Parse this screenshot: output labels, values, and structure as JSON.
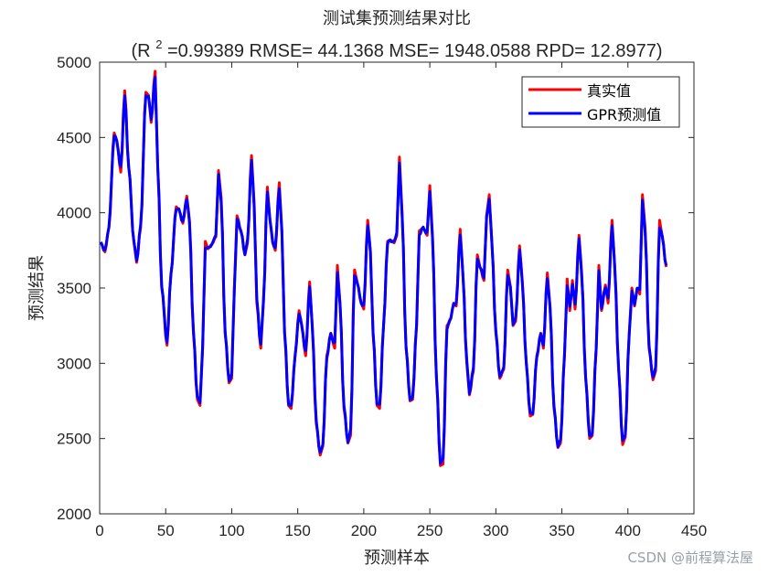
{
  "chart_data": {
    "type": "line",
    "title_line1": "测试集预测结果对比",
    "title_line2": {
      "prefix": "(R",
      "sup": "2",
      "rest": " =0.99389 RMSE= 44.1368 MSE= 1948.0588 RPD= 12.8977)"
    },
    "xlabel": "预测样本",
    "ylabel": "预测结果",
    "xlim": [
      0,
      450
    ],
    "ylim": [
      2000,
      5000
    ],
    "xticks": [
      0,
      50,
      100,
      150,
      200,
      250,
      300,
      350,
      400,
      450
    ],
    "yticks": [
      2000,
      2500,
      3000,
      3500,
      4000,
      4500,
      5000
    ],
    "legend_position": "top-right",
    "series": [
      {
        "name": "真实值",
        "color": "#ff0000"
      },
      {
        "name": "GPR预测值",
        "color": "#0000ff"
      }
    ],
    "keypoints": [
      [
        1,
        3800
      ],
      [
        4,
        3740
      ],
      [
        7,
        3900
      ],
      [
        11,
        4530
      ],
      [
        13,
        4480
      ],
      [
        16,
        4270
      ],
      [
        19,
        4810
      ],
      [
        22,
        4300
      ],
      [
        26,
        3800
      ],
      [
        28,
        3670
      ],
      [
        31,
        3900
      ],
      [
        35,
        4800
      ],
      [
        37,
        4780
      ],
      [
        39,
        4600
      ],
      [
        42,
        4940
      ],
      [
        44,
        4300
      ],
      [
        47,
        3500
      ],
      [
        51,
        3120
      ],
      [
        54,
        3600
      ],
      [
        58,
        4040
      ],
      [
        60,
        4020
      ],
      [
        63,
        3930
      ],
      [
        66,
        4110
      ],
      [
        68,
        3950
      ],
      [
        71,
        3200
      ],
      [
        74,
        2760
      ],
      [
        76,
        2720
      ],
      [
        78,
        3100
      ],
      [
        80,
        3810
      ],
      [
        82,
        3760
      ],
      [
        85,
        3790
      ],
      [
        88,
        3840
      ],
      [
        90,
        4280
      ],
      [
        92,
        4100
      ],
      [
        95,
        3200
      ],
      [
        98,
        2870
      ],
      [
        100,
        2900
      ],
      [
        102,
        3500
      ],
      [
        104,
        3980
      ],
      [
        107,
        3880
      ],
      [
        110,
        3720
      ],
      [
        112,
        3800
      ],
      [
        115,
        4380
      ],
      [
        117,
        4060
      ],
      [
        119,
        3400
      ],
      [
        122,
        3100
      ],
      [
        124,
        3400
      ],
      [
        127,
        4170
      ],
      [
        129,
        3950
      ],
      [
        131,
        3800
      ],
      [
        133,
        3750
      ],
      [
        136,
        4200
      ],
      [
        138,
        3880
      ],
      [
        140,
        3200
      ],
      [
        143,
        2720
      ],
      [
        145,
        2700
      ],
      [
        148,
        3050
      ],
      [
        151,
        3350
      ],
      [
        153,
        3250
      ],
      [
        156,
        3050
      ],
      [
        159,
        3540
      ],
      [
        161,
        3250
      ],
      [
        164,
        2600
      ],
      [
        167,
        2390
      ],
      [
        169,
        2450
      ],
      [
        172,
        3050
      ],
      [
        175,
        3200
      ],
      [
        178,
        3100
      ],
      [
        180,
        3650
      ],
      [
        182,
        3400
      ],
      [
        185,
        2700
      ],
      [
        188,
        2470
      ],
      [
        190,
        2520
      ],
      [
        193,
        3620
      ],
      [
        195,
        3540
      ],
      [
        198,
        3400
      ],
      [
        200,
        3360
      ],
      [
        203,
        3950
      ],
      [
        205,
        3750
      ],
      [
        207,
        3200
      ],
      [
        210,
        2720
      ],
      [
        212,
        2700
      ],
      [
        215,
        3250
      ],
      [
        218,
        3810
      ],
      [
        220,
        3820
      ],
      [
        223,
        3800
      ],
      [
        225,
        3850
      ],
      [
        227,
        4370
      ],
      [
        229,
        4000
      ],
      [
        232,
        3100
      ],
      [
        235,
        2750
      ],
      [
        237,
        2760
      ],
      [
        240,
        3250
      ],
      [
        242,
        3880
      ],
      [
        245,
        3900
      ],
      [
        248,
        3850
      ],
      [
        250,
        4180
      ],
      [
        252,
        3850
      ],
      [
        255,
        2900
      ],
      [
        258,
        2320
      ],
      [
        260,
        2330
      ],
      [
        263,
        3250
      ],
      [
        266,
        3300
      ],
      [
        268,
        3400
      ],
      [
        270,
        3380
      ],
      [
        273,
        3890
      ],
      [
        275,
        3600
      ],
      [
        278,
        3000
      ],
      [
        280,
        2790
      ],
      [
        283,
        2950
      ],
      [
        286,
        3720
      ],
      [
        288,
        3640
      ],
      [
        291,
        3550
      ],
      [
        293,
        3980
      ],
      [
        295,
        4120
      ],
      [
        297,
        3800
      ],
      [
        300,
        3200
      ],
      [
        303,
        2900
      ],
      [
        306,
        2960
      ],
      [
        309,
        3620
      ],
      [
        311,
        3510
      ],
      [
        313,
        3250
      ],
      [
        315,
        3280
      ],
      [
        318,
        3780
      ],
      [
        320,
        3550
      ],
      [
        323,
        3000
      ],
      [
        326,
        2650
      ],
      [
        328,
        2660
      ],
      [
        331,
        3050
      ],
      [
        334,
        3200
      ],
      [
        336,
        3100
      ],
      [
        339,
        3600
      ],
      [
        341,
        3380
      ],
      [
        344,
        2700
      ],
      [
        347,
        2440
      ],
      [
        349,
        2470
      ],
      [
        352,
        3050
      ],
      [
        354,
        3560
      ],
      [
        356,
        3350
      ],
      [
        358,
        3550
      ],
      [
        360,
        3360
      ],
      [
        363,
        3850
      ],
      [
        365,
        3600
      ],
      [
        368,
        2900
      ],
      [
        371,
        2500
      ],
      [
        373,
        2520
      ],
      [
        376,
        3100
      ],
      [
        378,
        3650
      ],
      [
        380,
        3350
      ],
      [
        383,
        3520
      ],
      [
        385,
        3400
      ],
      [
        388,
        3950
      ],
      [
        390,
        3650
      ],
      [
        393,
        2950
      ],
      [
        396,
        2460
      ],
      [
        398,
        2510
      ],
      [
        401,
        3200
      ],
      [
        403,
        3500
      ],
      [
        405,
        3380
      ],
      [
        407,
        3500
      ],
      [
        409,
        3460
      ],
      [
        411,
        4120
      ],
      [
        413,
        3900
      ],
      [
        416,
        3100
      ],
      [
        419,
        2890
      ],
      [
        421,
        2950
      ],
      [
        424,
        3950
      ],
      [
        426,
        3840
      ],
      [
        429,
        3640
      ]
    ]
  },
  "watermark": "CSDN @前程算法屋"
}
